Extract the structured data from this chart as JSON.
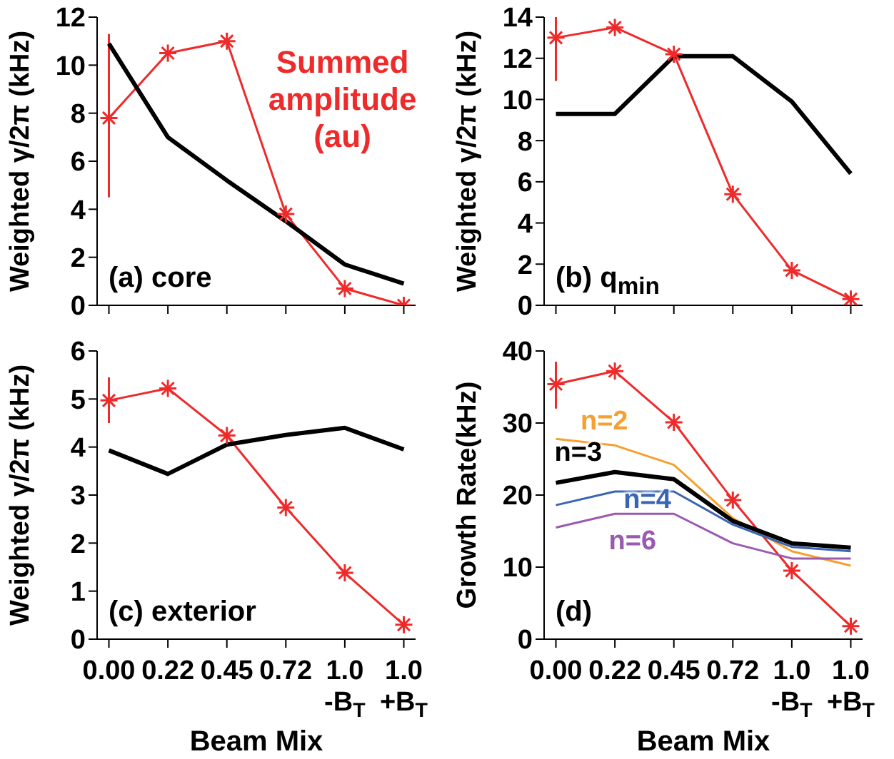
{
  "chart_data": [
    {
      "type": "line",
      "title": "(a) core",
      "ylabel": "Weighted γ/2π (kHz)",
      "categories": [
        null,
        null,
        null,
        null,
        null,
        null
      ],
      "tick_labels": "y",
      "ylim": [
        0,
        12
      ],
      "yticks": [
        0,
        2,
        4,
        6,
        8,
        10,
        12
      ],
      "series": [
        {
          "name": "Summed amplitude (au)",
          "color": "#ee2a2a",
          "marker": "cross",
          "values": [
            7.8,
            10.5,
            11.0,
            3.8,
            0.7,
            0
          ],
          "errors": [
            [
              4.5,
              11.3
            ],
            null,
            null,
            null,
            null,
            null
          ]
        },
        {
          "color": "#000000",
          "marker": "none",
          "values": [
            10.9,
            7.0,
            5.2,
            3.5,
            1.7,
            0.9
          ]
        }
      ]
    },
    {
      "type": "line",
      "title": "(b) q$_{min}$",
      "ylabel": "Weighted γ/2π (kHz)",
      "categories": [
        null,
        null,
        null,
        null,
        null,
        null
      ],
      "tick_labels": "y",
      "ylim": [
        0,
        14
      ],
      "yticks": [
        0,
        2,
        4,
        6,
        8,
        10,
        12,
        14
      ],
      "series": [
        {
          "color": "#ee2a2a",
          "marker": "cross",
          "values": [
            13.0,
            13.5,
            12.2,
            5.4,
            1.7,
            0.3
          ],
          "errors": [
            [
              10.9,
              14
            ],
            null,
            null,
            null,
            null,
            null
          ]
        },
        {
          "color": "#000000",
          "marker": "none",
          "values": [
            9.3,
            9.3,
            12.1,
            12.1,
            9.9,
            6.4
          ]
        }
      ]
    },
    {
      "type": "line",
      "title": "(c) exterior",
      "xlabel": "Beam Mix",
      "ylabel": "Weighted γ/2π (kHz)",
      "categories": [
        "0.00",
        "0.22",
        "0.45",
        "0.72",
        "1.0\n-B$_{T}$",
        "1.0\n+B$_{T}$"
      ],
      "ylim": [
        0,
        6
      ],
      "yticks": [
        0,
        1,
        2,
        3,
        4,
        5,
        6
      ],
      "series": [
        {
          "color": "#ee2a2a",
          "marker": "cross",
          "values": [
            4.97,
            5.22,
            4.24,
            2.74,
            1.38,
            0.3
          ],
          "errors": [
            [
              4.5,
              5.45
            ],
            null,
            null,
            null,
            null,
            null
          ]
        },
        {
          "color": "#000000",
          "marker": "none",
          "values": [
            3.93,
            3.44,
            4.05,
            4.25,
            4.4,
            3.95
          ]
        }
      ]
    },
    {
      "type": "line",
      "title": "(d)",
      "xlabel": "Beam Mix",
      "ylabel": "Growth Rate(kHz)",
      "categories": [
        "0.00",
        "0.22",
        "0.45",
        "0.72",
        "1.0\n-B$_{T}$",
        "1.0\n+B$_{T}$"
      ],
      "ylim": [
        0,
        40
      ],
      "yticks": [
        0,
        10,
        20,
        30,
        40
      ],
      "series": [
        {
          "color": "#ee2a2a",
          "marker": "cross",
          "values": [
            35.4,
            37.2,
            30.1,
            19.3,
            9.5,
            1.8
          ],
          "errors": [
            [
              32,
              38.5
            ],
            null,
            null,
            null,
            null,
            null
          ]
        },
        {
          "name": "n=2",
          "color": "#f5a030",
          "marker": "none",
          "values": [
            27.8,
            26.9,
            24.2,
            16.8,
            12.2,
            10.2
          ]
        },
        {
          "name": "n=3",
          "color": "#000000",
          "marker": "none",
          "values": [
            21.7,
            23.2,
            22.2,
            16.4,
            13.3,
            12.7
          ]
        },
        {
          "name": "n=4",
          "color": "#3a64b4",
          "marker": "none",
          "values": [
            18.6,
            20.5,
            20.5,
            15.9,
            12.8,
            12.2
          ]
        },
        {
          "name": "n=6",
          "color": "#9a5ab0",
          "marker": "none",
          "values": [
            15.5,
            17.4,
            17.4,
            13.3,
            11.2,
            11.2
          ]
        }
      ]
    }
  ]
}
